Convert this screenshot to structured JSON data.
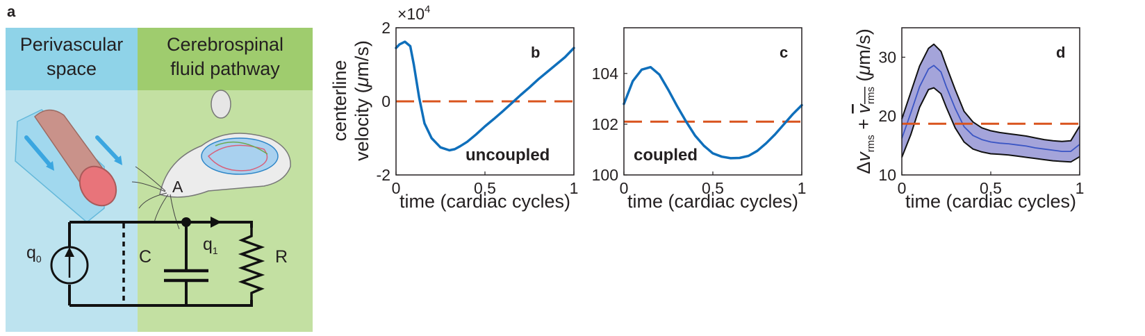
{
  "figure": {
    "panel_a": {
      "letter": "a",
      "header_left": [
        "Perivascular",
        "space"
      ],
      "header_right": [
        "Cerebrospinal",
        "fluid pathway"
      ],
      "circuit": {
        "node": "A",
        "source_label": "q",
        "source_sub": "0",
        "flow_label": "q",
        "flow_sub": "1",
        "capacitor_label": "C",
        "resistor_label": "R"
      },
      "colors": {
        "left_header": "#8fd3e8",
        "left_body": "#bde3ef",
        "right_header": "#9fcc6e",
        "right_body": "#c3e0a2"
      }
    },
    "colors": {
      "curve": "#0f6fbb",
      "reference": "#d9541e",
      "band_fill": "#9a9ad6",
      "band_edge": "#111111",
      "mean_line": "#3a55c4"
    }
  },
  "chart_data": [
    {
      "panel": "b",
      "type": "line",
      "annotation": "uncoupled",
      "multiplier": "×10",
      "multiplier_exp": "4",
      "xlabel": "time (cardiac cycles)",
      "ylabel_line1": "centerline",
      "ylabel_line2": "velocity (",
      "ylabel_mu": "μ",
      "ylabel_tail": "m/s)",
      "xlim": [
        0,
        1
      ],
      "ylim": [
        -2,
        2
      ],
      "xticks": [
        "0",
        "0.5",
        "1"
      ],
      "yticks": [
        "-2",
        "0",
        "2"
      ],
      "reference_y": 0,
      "series": [
        {
          "x": [
            0,
            0.02,
            0.05,
            0.08,
            0.1,
            0.13,
            0.16,
            0.2,
            0.25,
            0.3,
            0.33,
            0.36,
            0.4,
            0.45,
            0.5,
            0.55,
            0.6,
            0.65,
            0.7,
            0.75,
            0.8,
            0.85,
            0.9,
            0.95,
            1.0
          ],
          "y": [
            1.45,
            1.55,
            1.62,
            1.5,
            1.0,
            0.1,
            -0.6,
            -1.0,
            -1.25,
            -1.33,
            -1.3,
            -1.22,
            -1.1,
            -0.9,
            -0.68,
            -0.48,
            -0.27,
            -0.05,
            0.17,
            0.38,
            0.6,
            0.8,
            1.0,
            1.2,
            1.45
          ]
        }
      ]
    },
    {
      "panel": "c",
      "type": "line",
      "annotation": "coupled",
      "xlabel": "time (cardiac cycles)",
      "xlim": [
        0,
        1
      ],
      "ylim": [
        100,
        105.8
      ],
      "xticks": [
        "0",
        "0.5",
        "1"
      ],
      "yticks": [
        "100",
        "102",
        "104"
      ],
      "reference_y": 102.1,
      "series": [
        {
          "x": [
            0,
            0.05,
            0.1,
            0.15,
            0.2,
            0.25,
            0.3,
            0.35,
            0.4,
            0.45,
            0.5,
            0.55,
            0.6,
            0.65,
            0.7,
            0.75,
            0.8,
            0.85,
            0.9,
            0.95,
            1.0
          ],
          "y": [
            102.8,
            103.7,
            104.15,
            104.25,
            103.95,
            103.35,
            102.7,
            102.1,
            101.55,
            101.15,
            100.85,
            100.72,
            100.66,
            100.67,
            100.75,
            100.95,
            101.25,
            101.6,
            102.0,
            102.4,
            102.75
          ]
        }
      ]
    },
    {
      "panel": "d",
      "type": "area",
      "xlabel": "time (cardiac cycles)",
      "ylabel": "Δv_rms + mean(v_rms) (μm/s)",
      "xlim": [
        0,
        1
      ],
      "ylim": [
        10,
        35
      ],
      "xticks": [
        "0",
        "0.5",
        "1"
      ],
      "yticks": [
        "10",
        "20",
        "30"
      ],
      "reference_y": 18.7,
      "series": [
        {
          "x": [
            0,
            0.05,
            0.1,
            0.15,
            0.18,
            0.22,
            0.25,
            0.3,
            0.35,
            0.4,
            0.45,
            0.5,
            0.55,
            0.6,
            0.65,
            0.7,
            0.75,
            0.8,
            0.85,
            0.9,
            0.95,
            1.0
          ],
          "mean": [
            16.2,
            20.5,
            25.0,
            28.0,
            28.6,
            27.5,
            25.0,
            21.3,
            18.2,
            16.7,
            16.0,
            15.6,
            15.4,
            15.3,
            15.1,
            14.9,
            14.6,
            14.4,
            14.2,
            14.0,
            14.0,
            15.2
          ],
          "upper": [
            19.5,
            24.0,
            28.5,
            31.5,
            32.2,
            31.0,
            28.5,
            24.5,
            20.8,
            19.0,
            18.0,
            17.5,
            17.2,
            17.0,
            16.8,
            16.6,
            16.3,
            16.0,
            15.8,
            15.7,
            15.8,
            18.3
          ],
          "lower": [
            13.0,
            16.8,
            21.5,
            24.5,
            24.8,
            23.8,
            21.5,
            18.0,
            15.6,
            14.4,
            13.9,
            13.6,
            13.5,
            13.4,
            13.2,
            13.0,
            12.8,
            12.6,
            12.4,
            12.3,
            12.2,
            13.1
          ]
        }
      ]
    }
  ]
}
